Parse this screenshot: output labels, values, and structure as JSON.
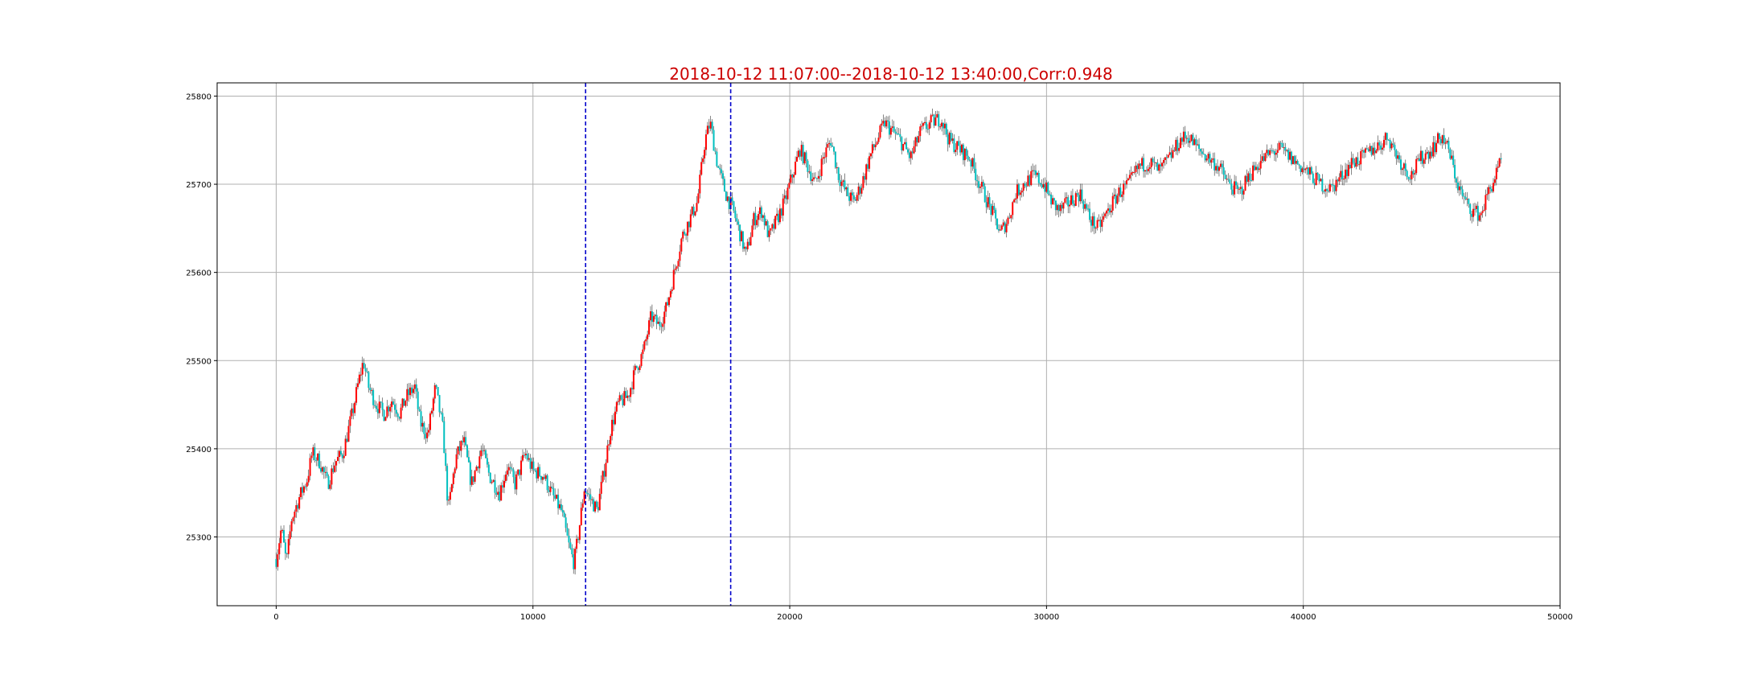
{
  "chart_data": {
    "type": "candlestick",
    "title": "2018-10-12 11:07:00--2018-10-12 13:40:00,Corr:0.948",
    "xlabel": "",
    "ylabel": "",
    "xlim": [
      -2300,
      50000
    ],
    "ylim": [
      25222,
      25815
    ],
    "xticks": [
      0,
      10000,
      20000,
      30000,
      40000,
      50000
    ],
    "xtick_labels": [
      "0",
      "10000",
      "20000",
      "30000",
      "40000",
      "50000"
    ],
    "yticks": [
      25300,
      25400,
      25500,
      25600,
      25700,
      25800
    ],
    "ytick_labels": [
      "25300",
      "25400",
      "25500",
      "25600",
      "25700",
      "25800"
    ],
    "grid": true,
    "colors": {
      "title": "#cc0000",
      "up": "#ff0000",
      "down": "#00bfbf",
      "wick": "#333333",
      "marker_line": "#0000cc",
      "grid": "#b0b0b0"
    },
    "vertical_markers": [
      12050,
      17700
    ],
    "price_path": [
      [
        0,
        25275
      ],
      [
        200,
        25310
      ],
      [
        400,
        25270
      ],
      [
        600,
        25320
      ],
      [
        900,
        25345
      ],
      [
        1200,
        25365
      ],
      [
        1400,
        25395
      ],
      [
        1700,
        25385
      ],
      [
        2000,
        25360
      ],
      [
        2300,
        25385
      ],
      [
        2600,
        25395
      ],
      [
        2800,
        25420
      ],
      [
        3000,
        25445
      ],
      [
        3200,
        25475
      ],
      [
        3400,
        25500
      ],
      [
        3600,
        25470
      ],
      [
        3900,
        25450
      ],
      [
        4200,
        25440
      ],
      [
        4500,
        25455
      ],
      [
        4800,
        25440
      ],
      [
        5100,
        25460
      ],
      [
        5400,
        25470
      ],
      [
        5600,
        25430
      ],
      [
        5900,
        25415
      ],
      [
        6200,
        25470
      ],
      [
        6500,
        25420
      ],
      [
        6700,
        25330
      ],
      [
        7000,
        25390
      ],
      [
        7300,
        25410
      ],
      [
        7600,
        25360
      ],
      [
        8000,
        25400
      ],
      [
        8300,
        25370
      ],
      [
        8700,
        25350
      ],
      [
        9000,
        25380
      ],
      [
        9300,
        25360
      ],
      [
        9700,
        25395
      ],
      [
        10000,
        25375
      ],
      [
        10400,
        25370
      ],
      [
        10800,
        25345
      ],
      [
        11100,
        25330
      ],
      [
        11400,
        25290
      ],
      [
        11600,
        25270
      ],
      [
        11800,
        25310
      ],
      [
        12000,
        25355
      ],
      [
        12300,
        25340
      ],
      [
        12500,
        25330
      ],
      [
        12800,
        25380
      ],
      [
        13000,
        25420
      ],
      [
        13300,
        25450
      ],
      [
        13700,
        25460
      ],
      [
        14000,
        25490
      ],
      [
        14300,
        25510
      ],
      [
        14600,
        25550
      ],
      [
        14900,
        25540
      ],
      [
        15200,
        25560
      ],
      [
        15500,
        25600
      ],
      [
        15800,
        25640
      ],
      [
        16100,
        25660
      ],
      [
        16400,
        25680
      ],
      [
        16700,
        25750
      ],
      [
        16900,
        25770
      ],
      [
        17200,
        25720
      ],
      [
        17500,
        25690
      ],
      [
        17800,
        25670
      ],
      [
        18100,
        25640
      ],
      [
        18300,
        25620
      ],
      [
        18600,
        25660
      ],
      [
        18900,
        25670
      ],
      [
        19200,
        25640
      ],
      [
        19500,
        25660
      ],
      [
        19800,
        25680
      ],
      [
        20100,
        25710
      ],
      [
        20400,
        25740
      ],
      [
        20700,
        25720
      ],
      [
        21000,
        25700
      ],
      [
        21300,
        25730
      ],
      [
        21600,
        25750
      ],
      [
        21900,
        25710
      ],
      [
        22200,
        25690
      ],
      [
        22500,
        25680
      ],
      [
        22800,
        25700
      ],
      [
        23100,
        25730
      ],
      [
        23400,
        25750
      ],
      [
        23700,
        25770
      ],
      [
        24000,
        25760
      ],
      [
        24300,
        25750
      ],
      [
        24700,
        25730
      ],
      [
        25100,
        25760
      ],
      [
        25500,
        25770
      ],
      [
        25900,
        25775
      ],
      [
        26200,
        25750
      ],
      [
        26600,
        25740
      ],
      [
        27000,
        25730
      ],
      [
        27400,
        25700
      ],
      [
        27700,
        25680
      ],
      [
        28000,
        25660
      ],
      [
        28200,
        25645
      ],
      [
        28500,
        25660
      ],
      [
        28800,
        25690
      ],
      [
        29100,
        25700
      ],
      [
        29500,
        25710
      ],
      [
        29900,
        25700
      ],
      [
        30200,
        25680
      ],
      [
        30500,
        25670
      ],
      [
        30900,
        25680
      ],
      [
        31300,
        25690
      ],
      [
        31700,
        25660
      ],
      [
        32000,
        25650
      ],
      [
        32400,
        25670
      ],
      [
        32800,
        25690
      ],
      [
        33200,
        25700
      ],
      [
        33600,
        25720
      ],
      [
        34000,
        25725
      ],
      [
        34400,
        25715
      ],
      [
        34800,
        25730
      ],
      [
        35200,
        25750
      ],
      [
        35500,
        25755
      ],
      [
        35900,
        25740
      ],
      [
        36300,
        25730
      ],
      [
        36700,
        25720
      ],
      [
        37100,
        25700
      ],
      [
        37500,
        25690
      ],
      [
        37900,
        25710
      ],
      [
        38300,
        25725
      ],
      [
        38700,
        25735
      ],
      [
        39100,
        25740
      ],
      [
        39500,
        25730
      ],
      [
        39900,
        25720
      ],
      [
        40300,
        25710
      ],
      [
        40700,
        25700
      ],
      [
        41100,
        25695
      ],
      [
        41500,
        25710
      ],
      [
        41900,
        25725
      ],
      [
        42300,
        25730
      ],
      [
        42700,
        25740
      ],
      [
        43000,
        25745
      ],
      [
        43300,
        25755
      ],
      [
        43600,
        25735
      ],
      [
        43900,
        25720
      ],
      [
        44200,
        25710
      ],
      [
        44600,
        25730
      ],
      [
        45000,
        25740
      ],
      [
        45400,
        25755
      ],
      [
        45700,
        25735
      ],
      [
        46000,
        25700
      ],
      [
        46300,
        25680
      ],
      [
        46600,
        25670
      ],
      [
        46900,
        25665
      ],
      [
        47200,
        25690
      ],
      [
        47500,
        25710
      ],
      [
        47700,
        25725
      ]
    ]
  }
}
